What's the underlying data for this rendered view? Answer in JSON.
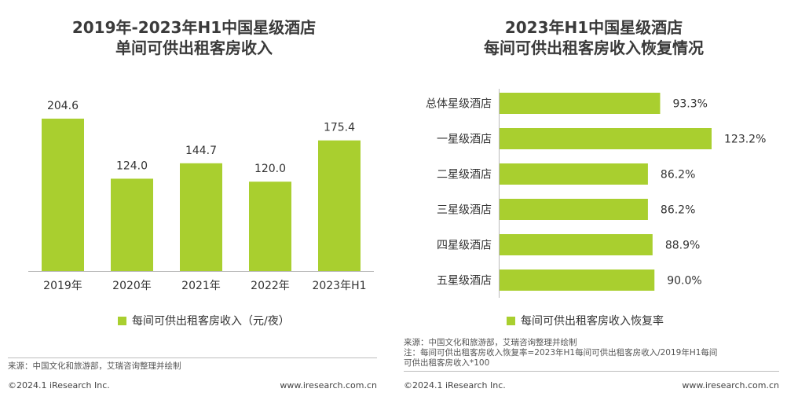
{
  "left": {
    "title_line1": "2019年-2023年H1中国星级酒店",
    "title_line2": "单间可供出租客房收入",
    "legend": "每间可供出租客房收入（元/夜）",
    "source": "来源：中国文化和旅游部，艾瑞咨询整理并绘制",
    "copyright": "©2024.1 iResearch Inc.",
    "site": "www.iresearch.com.cn"
  },
  "right": {
    "title_line1": "2023年H1中国星级酒店",
    "title_line2": "每间可供出租客房收入恢复情况",
    "legend": "每间可供出租客房收入恢复率",
    "source_line1": "来源：中国文化和旅游部，艾瑞咨询整理并绘制",
    "source_line2": "注：每间可供出租客房收入恢复率=2023年H1每间可供出租客房收入/2019年H1每间",
    "source_line3": "可供出租客房收入*100",
    "copyright": "©2024.1 iResearch Inc.",
    "site": "www.iresearch.com.cn"
  },
  "colors": {
    "bar": "#a9cf2f",
    "text": "#333333",
    "axis": "#bbbbbb"
  },
  "chart_data": [
    {
      "type": "bar",
      "orientation": "vertical",
      "title": "2019年-2023年H1中国星级酒店单间可供出租客房收入",
      "categories": [
        "2019年",
        "2020年",
        "2021年",
        "2022年",
        "2023年H1"
      ],
      "values": [
        204.6,
        124.0,
        144.7,
        120.0,
        175.4
      ],
      "value_labels": [
        "204.6",
        "124.0",
        "144.7",
        "120.0",
        "175.4"
      ],
      "series": [
        {
          "name": "每间可供出租客房收入（元/夜）",
          "values": [
            204.6,
            124.0,
            144.7,
            120.0,
            175.4
          ]
        }
      ],
      "ylim": [
        0,
        204.6
      ],
      "grid": false,
      "legend": "bottom"
    },
    {
      "type": "bar",
      "orientation": "horizontal",
      "title": "2023年H1中国星级酒店每间可供出租客房收入恢复情况",
      "categories": [
        "总体星级酒店",
        "一星级酒店",
        "二星级酒店",
        "三星级酒店",
        "四星级酒店",
        "五星级酒店"
      ],
      "values": [
        93.3,
        123.2,
        86.2,
        86.2,
        88.9,
        90.0
      ],
      "value_labels": [
        "93.3%",
        "123.2%",
        "86.2%",
        "86.2%",
        "88.9%",
        "90.0%"
      ],
      "series": [
        {
          "name": "每间可供出租客房收入恢复率",
          "values": [
            93.3,
            123.2,
            86.2,
            86.2,
            88.9,
            90.0
          ]
        }
      ],
      "xlim": [
        0,
        123.2
      ],
      "unit": "%",
      "grid": false,
      "legend": "bottom"
    }
  ]
}
